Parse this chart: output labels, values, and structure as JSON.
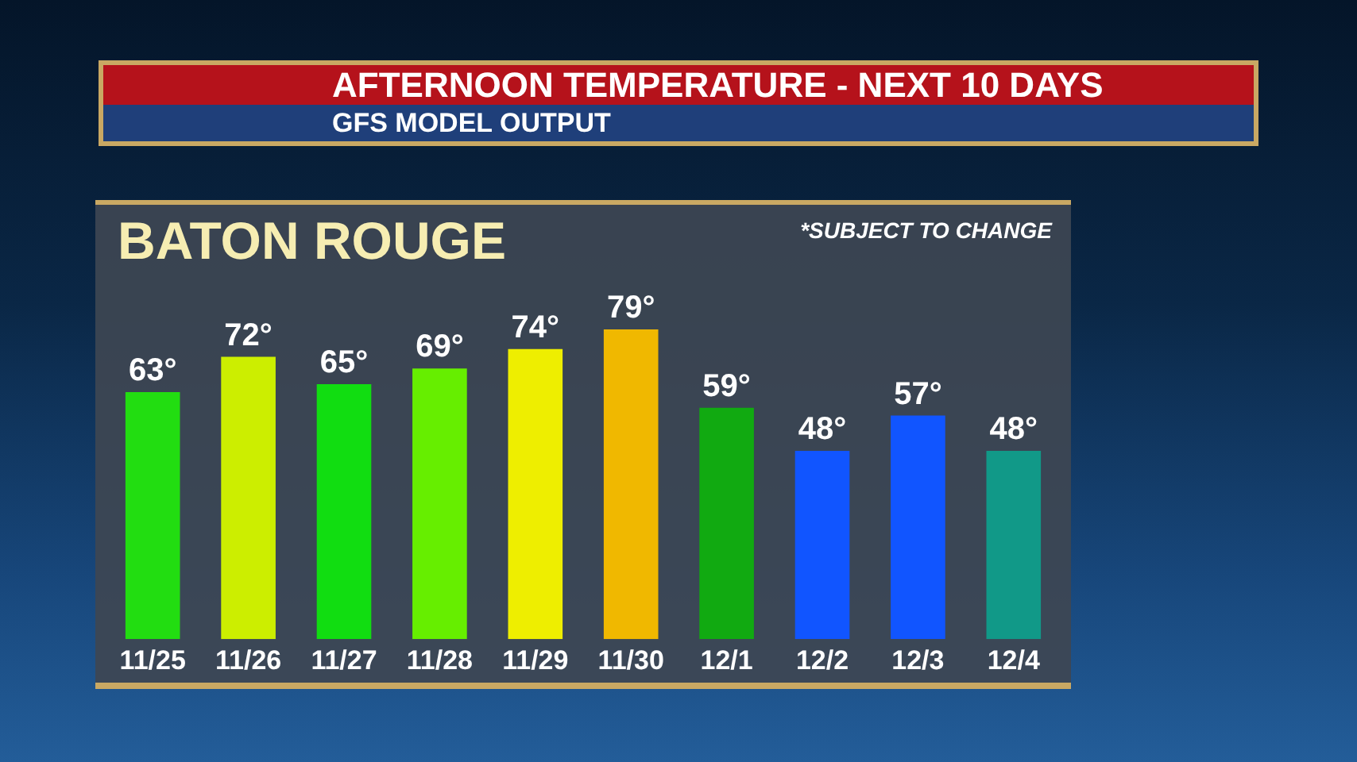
{
  "chart_data": {
    "type": "bar",
    "title": "AFTERNOON TEMPERATURE - NEXT 10 DAYS",
    "subtitle": "GFS MODEL OUTPUT",
    "annotations": [
      "BATON ROUGE",
      "*SUBJECT TO CHANGE"
    ],
    "categories": [
      "11/25",
      "11/26",
      "11/27",
      "11/28",
      "11/29",
      "11/30",
      "12/1",
      "12/2",
      "12/3",
      "12/4"
    ],
    "values": [
      63,
      72,
      65,
      69,
      74,
      79,
      59,
      48,
      57,
      48
    ],
    "value_labels": [
      "63°",
      "72°",
      "65°",
      "69°",
      "74°",
      "79°",
      "59°",
      "48°",
      "57°",
      "48°"
    ],
    "colors": [
      "#22dd11",
      "#ccee00",
      "#11dd11",
      "#66ee00",
      "#eeee00",
      "#f0b800",
      "#11aa11",
      "#1155ff",
      "#1155ff",
      "#119988"
    ],
    "tick_labels": "x"
  }
}
